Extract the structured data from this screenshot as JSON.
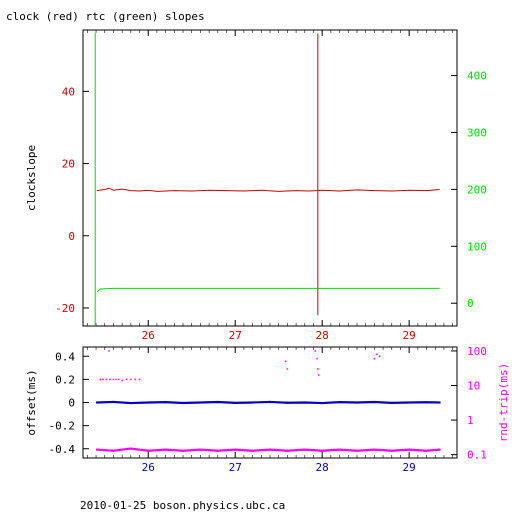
{
  "title": "clock (red) rtc (green) slopes",
  "footer": "2010-01-25 boson.physics.ubc.ca",
  "colors": {
    "red": "#cc0000",
    "green": "#00dd00",
    "blue": "#0000cc",
    "magenta": "#ff00ff",
    "axis": "#000000"
  },
  "chart_data": [
    {
      "type": "line",
      "title": "clock (red) rtc (green) slopes",
      "xlim": [
        25.25,
        29.55
      ],
      "x_ticks": [
        26,
        27,
        28,
        29
      ],
      "ylabel": "clockslope",
      "ylim": [
        -25,
        57
      ],
      "y_ticks": [
        -20,
        0,
        20,
        40
      ],
      "y2lim": [
        -40,
        480
      ],
      "y2_ticks": [
        0,
        100,
        200,
        300,
        400
      ],
      "grid": false,
      "series": [
        {
          "name": "clock",
          "color": "red",
          "axis": "left",
          "x": [
            25.41,
            25.5,
            25.55,
            25.6,
            25.7,
            25.8,
            25.9,
            26.0,
            26.1,
            26.3,
            26.5,
            26.7,
            26.9,
            27.1,
            27.3,
            27.5,
            27.7,
            27.85,
            27.93,
            28.0,
            28.2,
            28.4,
            28.6,
            28.8,
            29.0,
            29.2,
            29.35
          ],
          "y": [
            12.5,
            12.8,
            13.2,
            12.6,
            12.9,
            12.5,
            12.4,
            12.6,
            12.3,
            12.5,
            12.4,
            12.6,
            12.5,
            12.4,
            12.6,
            12.3,
            12.5,
            12.4,
            12.5,
            12.6,
            12.4,
            12.7,
            12.5,
            12.4,
            12.6,
            12.5,
            12.8
          ],
          "spike": {
            "x": 27.95,
            "ymin": -22,
            "ymax": 56
          }
        },
        {
          "name": "rtc",
          "color": "green",
          "axis": "right",
          "x": [
            25.41,
            25.45,
            25.6,
            26.0,
            26.5,
            27.0,
            27.5,
            28.0,
            28.5,
            29.0,
            29.35
          ],
          "y": [
            20,
            25,
            26,
            26,
            26,
            26,
            26,
            26,
            26,
            26,
            26
          ],
          "spike": {
            "x": 25.39,
            "ymin": -40,
            "ymax": 475
          }
        }
      ]
    },
    {
      "type": "scatter",
      "xlim": [
        25.25,
        29.55
      ],
      "x_ticks": [
        26,
        27,
        28,
        29
      ],
      "ylabel": "offset(ms)",
      "ylim": [
        -0.48,
        0.48
      ],
      "y_ticks": [
        -0.4,
        -0.2,
        0,
        0.2,
        0.4
      ],
      "y2label": "rnd-trip(ms)",
      "y2_scale": "log",
      "y2lim": [
        0.08,
        130
      ],
      "y2_ticks": [
        0.1,
        1,
        10,
        100
      ],
      "grid": false,
      "series": [
        {
          "name": "offset",
          "color": "blue",
          "axis": "left",
          "x": [
            25.41,
            25.6,
            25.8,
            26.0,
            26.2,
            26.4,
            26.6,
            26.8,
            27.0,
            27.2,
            27.4,
            27.6,
            27.8,
            28.0,
            28.2,
            28.4,
            28.6,
            28.8,
            29.0,
            29.2,
            29.35
          ],
          "y": [
            0.0,
            0.005,
            -0.005,
            0.0,
            0.003,
            -0.004,
            0.0,
            0.004,
            -0.003,
            0.0,
            0.005,
            -0.002,
            0.0,
            -0.005,
            0.003,
            0.0,
            0.004,
            -0.003,
            0.0,
            0.002,
            0.0
          ]
        },
        {
          "name": "rnd-trip",
          "color": "magenta",
          "axis": "right",
          "x": [
            25.41,
            25.6,
            25.8,
            26.0,
            26.2,
            26.4,
            26.6,
            26.8,
            27.0,
            27.2,
            27.4,
            27.6,
            27.8,
            28.0,
            28.2,
            28.4,
            28.6,
            28.8,
            29.0,
            29.2,
            29.35
          ],
          "y": [
            0.14,
            0.13,
            0.15,
            0.13,
            0.14,
            0.13,
            0.14,
            0.13,
            0.14,
            0.13,
            0.14,
            0.13,
            0.14,
            0.13,
            0.14,
            0.13,
            0.14,
            0.13,
            0.14,
            0.13,
            0.14
          ],
          "outliers": {
            "x": [
              25.45,
              25.48,
              25.52,
              25.56,
              25.6,
              25.63,
              25.66,
              25.7,
              25.75,
              25.8,
              25.85,
              25.9,
              25.55,
              27.58,
              27.6,
              27.92,
              27.94,
              27.95,
              27.96,
              28.6,
              28.63,
              28.66
            ],
            "y": [
              15,
              15,
              15,
              15,
              15,
              15,
              15,
              14,
              15,
              15,
              15,
              15,
              100,
              50,
              30,
              100,
              60,
              30,
              20,
              60,
              80,
              70
            ]
          }
        }
      ]
    }
  ]
}
